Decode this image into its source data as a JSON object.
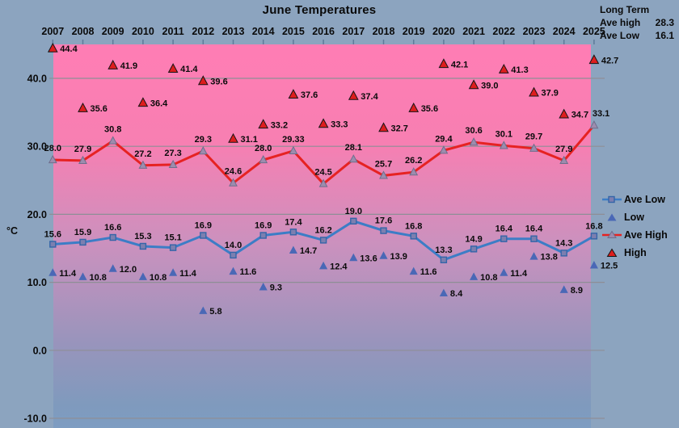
{
  "window": {
    "title": "June Temperatures"
  },
  "long_term": {
    "title": "Long Term",
    "ave_high_label": "Ave high",
    "ave_high_value": "28.3",
    "ave_low_label": "Ave Low",
    "ave_low_value": "16.1"
  },
  "axes": {
    "y_unit": "°C"
  },
  "chart_data": {
    "type": "line",
    "title": "June Temperatures",
    "xlabel": "",
    "ylabel": "°C",
    "ylim": [
      -10,
      45
    ],
    "grid": "horizontal",
    "legend_position": "right",
    "categories": [
      "2007",
      "2008",
      "2009",
      "2010",
      "2011",
      "2012",
      "2013",
      "2014",
      "2015",
      "2016",
      "2017",
      "2018",
      "2019",
      "2020",
      "2021",
      "2022",
      "2023",
      "2024",
      "2025"
    ],
    "y_ticks": [
      {
        "v": 40,
        "label": "40.0"
      },
      {
        "v": 30,
        "label": "30.0"
      },
      {
        "v": 20,
        "label": "20.0"
      },
      {
        "v": 10,
        "label": "10.0"
      },
      {
        "v": 0,
        "label": "0.0"
      },
      {
        "v": -10,
        "label": "-10.0"
      }
    ],
    "series": [
      {
        "name": "Ave Low",
        "kind": "line",
        "marker": "square",
        "values": [
          15.6,
          15.9,
          16.6,
          15.3,
          15.1,
          16.9,
          14.0,
          16.9,
          17.4,
          16.2,
          19.0,
          17.6,
          16.8,
          13.3,
          14.9,
          16.4,
          16.4,
          14.3,
          16.8
        ],
        "labels": [
          "15.6",
          "15.9",
          "16.6",
          "15.3",
          "15.1",
          "16.9",
          "14.0",
          "16.9",
          "17.4",
          "16.2",
          "19.0",
          "17.6",
          "16.8",
          "13.3",
          "14.9",
          "16.4",
          "16.4",
          "14.3",
          "16.8"
        ]
      },
      {
        "name": "Low",
        "kind": "scatter",
        "marker": "triangle",
        "values": [
          11.4,
          10.8,
          12.0,
          10.8,
          11.4,
          5.8,
          11.6,
          9.3,
          14.7,
          12.4,
          13.6,
          13.9,
          11.6,
          8.4,
          10.8,
          11.4,
          13.8,
          8.9,
          12.5
        ],
        "labels": [
          "11.4",
          "10.8",
          "12.0",
          "10.8",
          "11.4",
          "5.8",
          "11.6",
          "9.3",
          "14.7",
          "12.4",
          "13.6",
          "13.9",
          "11.6",
          "8.4",
          "10.8",
          "11.4",
          "13.8",
          "8.9",
          "12.5"
        ]
      },
      {
        "name": "Ave High",
        "kind": "line",
        "marker": "triangle",
        "values": [
          28.0,
          27.9,
          30.8,
          27.2,
          27.3,
          29.3,
          24.6,
          28.0,
          29.33,
          24.5,
          28.1,
          25.7,
          26.2,
          29.4,
          30.6,
          30.1,
          29.7,
          27.9,
          33.1
        ],
        "labels": [
          "28.0",
          "27.9",
          "30.8",
          "27.2",
          "27.3",
          "29.3",
          "24.6",
          "28.0",
          "29.33",
          "24.5",
          "28.1",
          "25.7",
          "26.2",
          "29.4",
          "30.6",
          "30.1",
          "29.7",
          "27.9",
          "33.1"
        ]
      },
      {
        "name": "High",
        "kind": "scatter",
        "marker": "triangle",
        "values": [
          44.4,
          35.6,
          41.9,
          36.4,
          41.4,
          39.6,
          31.1,
          33.2,
          37.6,
          33.3,
          37.4,
          32.7,
          35.6,
          42.1,
          39.0,
          41.3,
          37.9,
          34.7,
          42.7
        ],
        "labels": [
          "44.4",
          "35.6",
          "41.9",
          "36.4",
          "41.4",
          "39.6",
          "31.1",
          "33.2",
          "37.6",
          "33.3",
          "37.4",
          "32.7",
          "35.6",
          "42.1",
          "39.0",
          "41.3",
          "37.9",
          "34.7",
          "42.7"
        ]
      }
    ],
    "colors": {
      "background": "#8CA4BF",
      "plot_gradient": [
        "#FF7DB4",
        "#F77FB2",
        "#CB91BE",
        "#9A94BC",
        "#7F9ABD",
        "#7E9DC2"
      ],
      "gridline": "#8E8E96",
      "axis_tick": "#5E7A99",
      "ave_low_line": "#3C7DC6",
      "ave_low_marker_fill": "#7C7FB0",
      "ave_low_marker_stroke": "#3465A8",
      "low_marker": "#4A68B6",
      "ave_high_line": "#E62222",
      "ave_high_marker_fill": "#9D8CAE",
      "ave_high_marker_stroke": "#6E6E8C",
      "high_marker_fill": "#DD1D1D",
      "high_marker_stroke": "#141414",
      "label_text": "#0A0A0A"
    }
  }
}
